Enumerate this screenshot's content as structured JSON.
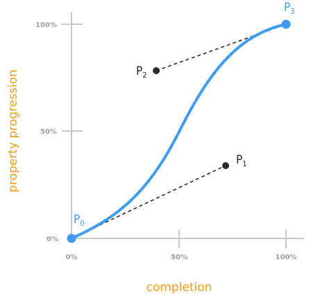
{
  "diagram": {
    "x_ticks": [
      "0%",
      "50%",
      "100%"
    ],
    "y_ticks": [
      "0%",
      "50%",
      "100%"
    ],
    "x_axis_title": "completion",
    "y_axis_title": "property progression",
    "points": [
      {
        "letter": "P",
        "sub": "0"
      },
      {
        "letter": "P",
        "sub": "1"
      },
      {
        "letter": "P",
        "sub": "2"
      },
      {
        "letter": "P",
        "sub": "3"
      }
    ],
    "colors": {
      "curve": "#3d9cf0",
      "endpoint": "#3d9cf0",
      "control_point": "#2b2b2b",
      "control_line": "#2b2b2b",
      "axis": "#c8c8c8",
      "tick_label": "#9e9e9e",
      "axis_title": "#f39c12"
    }
  }
}
